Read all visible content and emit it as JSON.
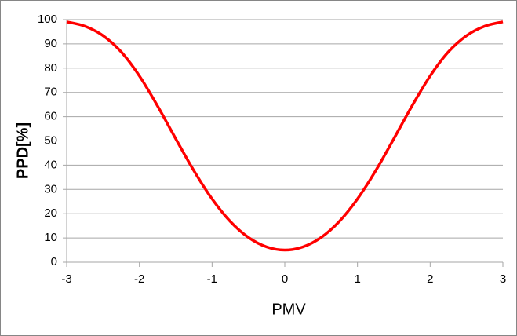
{
  "chart_data": {
    "type": "line",
    "x_label": "PMV",
    "y_label": "PPD[%]",
    "x": [
      -3,
      -2.75,
      -2.5,
      -2.25,
      -2,
      -1.75,
      -1.5,
      -1.25,
      -1,
      -0.75,
      -0.5,
      -0.25,
      0,
      0.25,
      0.5,
      0.75,
      1,
      1.25,
      1.5,
      1.75,
      2,
      2.25,
      2.5,
      2.75,
      3
    ],
    "values": [
      99.1,
      97.3,
      93.4,
      86.7,
      76.8,
      64.4,
      50.9,
      37.7,
      26.1,
      16.8,
      10.2,
      6.3,
      5,
      6.3,
      10.2,
      16.8,
      26.1,
      37.7,
      50.9,
      64.4,
      76.8,
      86.7,
      93.4,
      97.3,
      99.1
    ],
    "color": "#ff0000",
    "xlim": [
      -3,
      3
    ],
    "xticks": [
      -3,
      -2,
      -1,
      0,
      1,
      2,
      3
    ],
    "ylim": [
      0,
      100
    ],
    "yticks": [
      0,
      10,
      20,
      30,
      40,
      50,
      60,
      70,
      80,
      90,
      100
    ],
    "grid": true
  }
}
